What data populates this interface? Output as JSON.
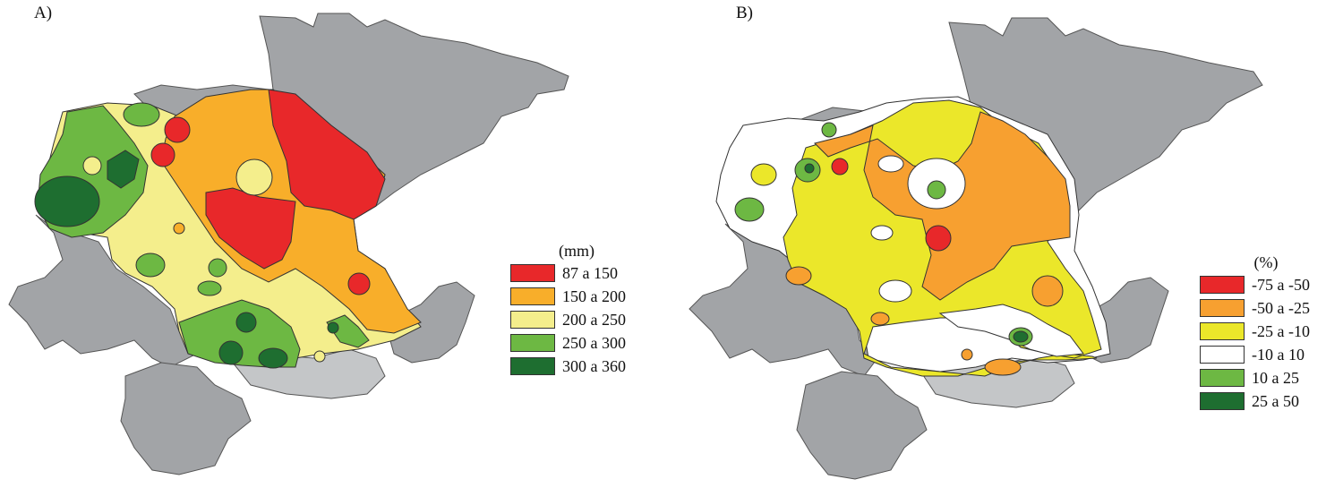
{
  "panels": [
    {
      "label": "A)",
      "legend": {
        "title": "(mm)",
        "items": [
          {
            "label": "87 a 150",
            "color": "#e8282a"
          },
          {
            "label": "150 a 200",
            "color": "#f8ae2a"
          },
          {
            "label": "200 a 250",
            "color": "#f4ee8c"
          },
          {
            "label": "250 a 300",
            "color": "#6db843"
          },
          {
            "label": "300 a 360",
            "color": "#1e6e30"
          }
        ]
      }
    },
    {
      "label": "B)",
      "legend": {
        "title": "(%)",
        "items": [
          {
            "label": "-75 a -50",
            "color": "#e8282a"
          },
          {
            "label": "-50 a -25",
            "color": "#f7a030"
          },
          {
            "label": "-25 a -10",
            "color": "#ebe72a"
          },
          {
            "label": "-10 a 10",
            "color": "#ffffff"
          },
          {
            "label": "10 a 25",
            "color": "#6db843"
          },
          {
            "label": "25 a 50",
            "color": "#1e6e30"
          }
        ]
      }
    }
  ],
  "colors": {
    "region_gray": "#a2a4a7",
    "region_light_gray": "#c4c6c8",
    "outline": "#2a2a2a"
  }
}
